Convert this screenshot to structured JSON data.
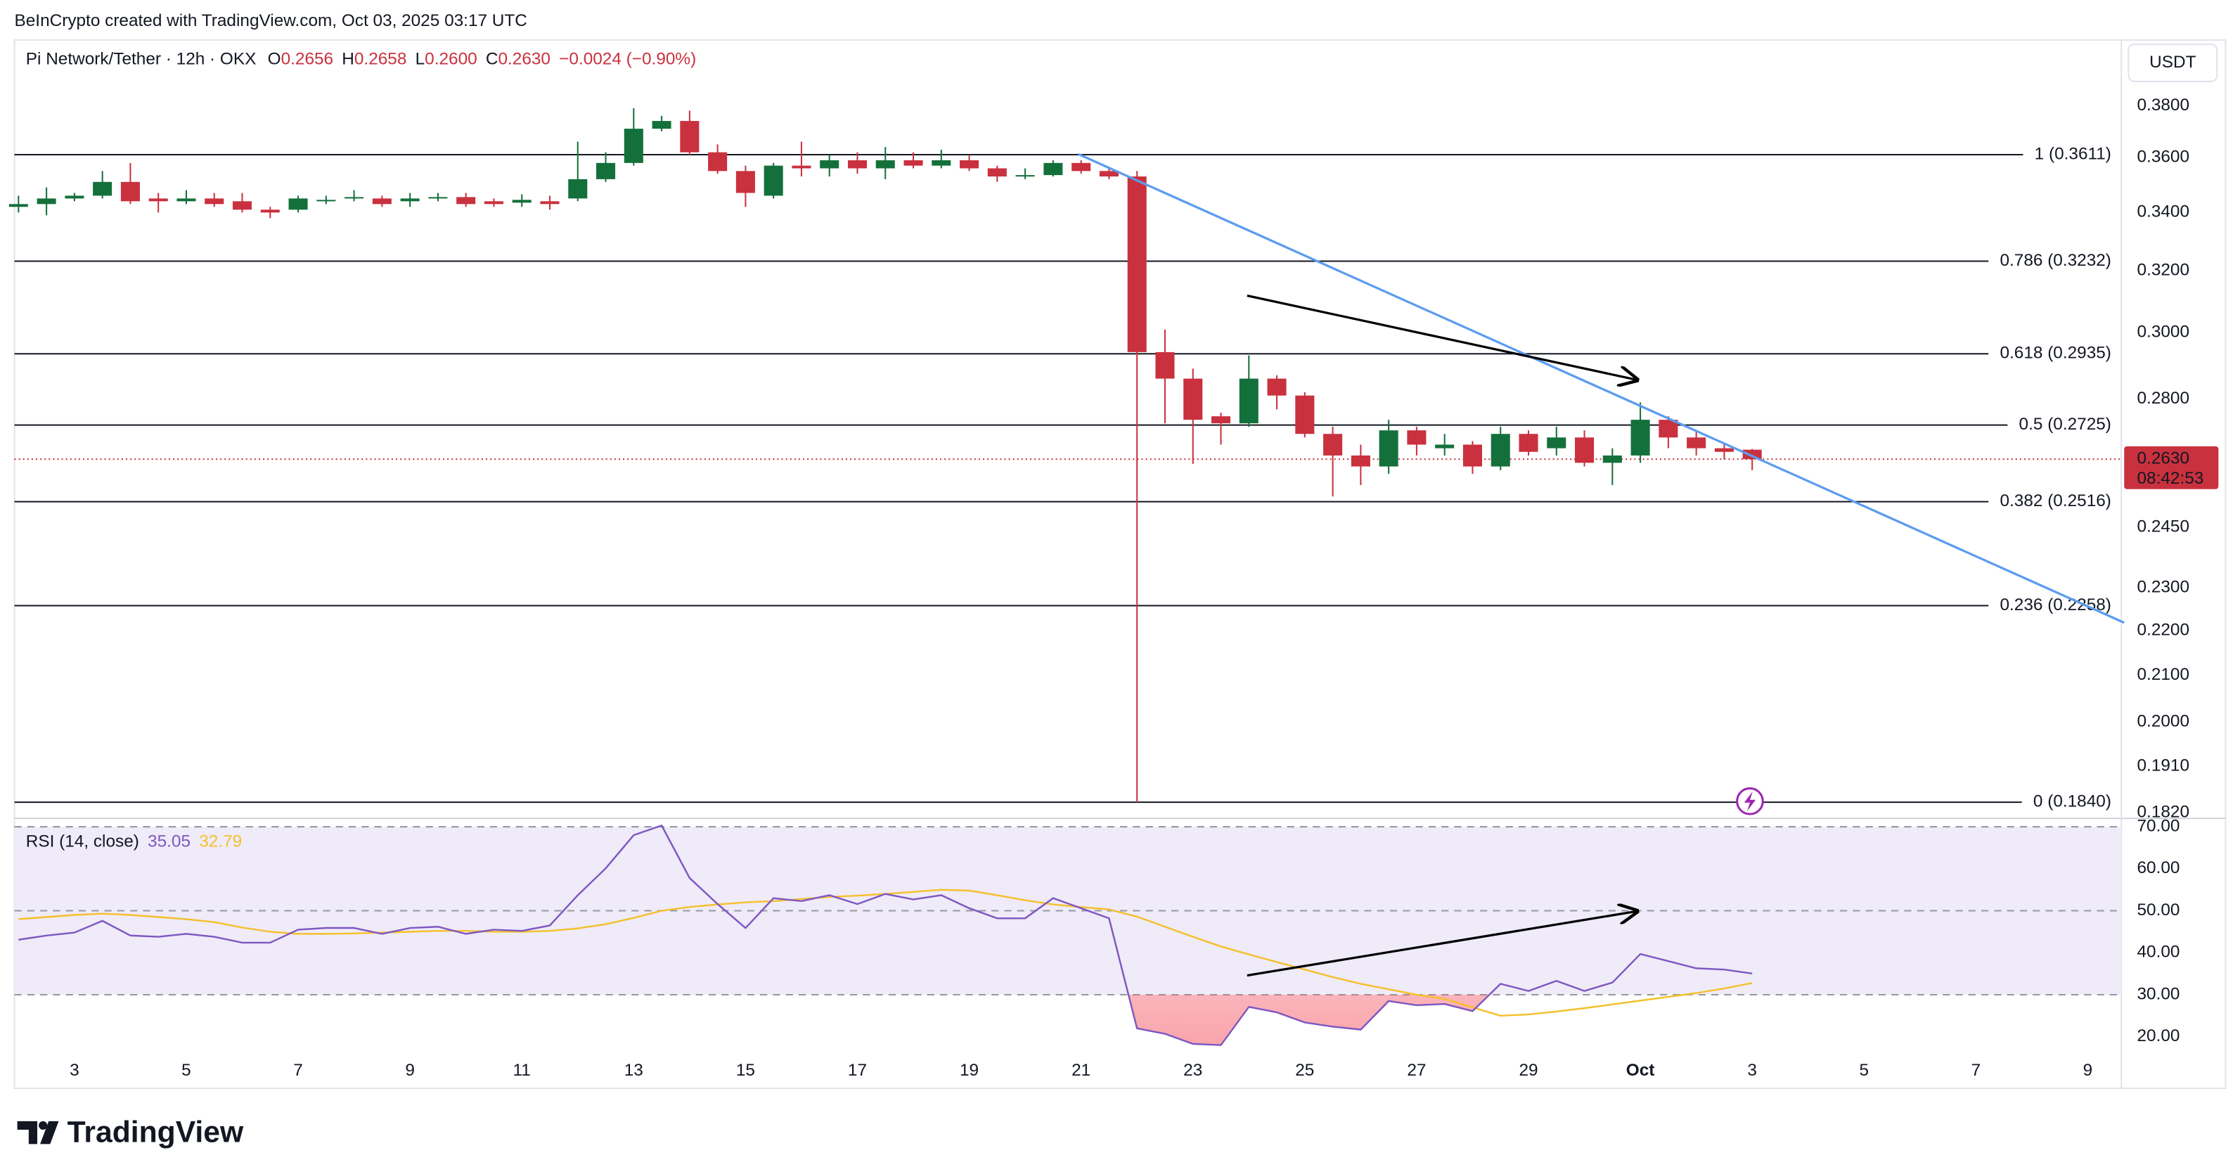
{
  "watermark": "BeInCrypto created with TradingView.com, Oct 03, 2025 03:17 UTC",
  "header": {
    "symbol": "Pi Network/Tether · 12h · OKX",
    "ohlc": [
      {
        "key": "O",
        "text": "0.2656"
      },
      {
        "key": "H",
        "text": "0.2658"
      },
      {
        "key": "L",
        "text": "0.2600"
      },
      {
        "key": "C",
        "text": "0.2630"
      }
    ],
    "change": "−0.0024 (−0.90%)"
  },
  "currency": "USDT",
  "chart_data": [
    {
      "type": "candlestick",
      "log_scale": true,
      "up_color": "#14703b",
      "down_color": "#c9313e",
      "x": [
        2,
        2.5,
        3,
        3.5,
        4,
        4.5,
        5,
        5.5,
        6,
        6.5,
        7,
        7.5,
        8,
        8.5,
        9,
        9.5,
        10,
        10.5,
        11,
        11.5,
        12,
        12.5,
        13,
        13.5,
        14,
        14.5,
        15,
        15.5,
        16,
        16.5,
        17,
        17.5,
        18,
        18.5,
        19,
        19.5,
        20,
        20.5,
        21,
        21.5,
        22,
        22.5,
        23,
        23.5,
        24,
        24.5,
        25,
        25.5,
        26,
        26.5,
        27,
        27.5,
        28,
        28.5,
        29,
        29.5,
        30,
        30.5,
        31,
        31.5,
        32,
        32.5,
        33
      ],
      "open": [
        0.342,
        0.343,
        0.345,
        0.346,
        0.351,
        0.345,
        0.344,
        0.345,
        0.344,
        0.341,
        0.341,
        0.344,
        0.345,
        0.345,
        0.344,
        0.345,
        0.3455,
        0.344,
        0.3435,
        0.344,
        0.345,
        0.352,
        0.358,
        0.371,
        0.374,
        0.362,
        0.355,
        0.346,
        0.357,
        0.356,
        0.359,
        0.356,
        0.359,
        0.357,
        0.359,
        0.356,
        0.353,
        0.3535,
        0.358,
        0.355,
        0.353,
        0.294,
        0.286,
        0.275,
        0.273,
        0.286,
        0.281,
        0.27,
        0.264,
        0.261,
        0.271,
        0.266,
        0.267,
        0.261,
        0.27,
        0.266,
        0.269,
        0.262,
        0.264,
        0.274,
        0.269,
        0.266,
        0.2656
      ],
      "high": [
        0.346,
        0.349,
        0.347,
        0.355,
        0.358,
        0.347,
        0.348,
        0.347,
        0.347,
        0.342,
        0.346,
        0.346,
        0.348,
        0.346,
        0.347,
        0.347,
        0.347,
        0.345,
        0.3465,
        0.346,
        0.366,
        0.362,
        0.379,
        0.376,
        0.378,
        0.365,
        0.357,
        0.358,
        0.366,
        0.361,
        0.362,
        0.364,
        0.362,
        0.363,
        0.361,
        0.357,
        0.356,
        0.359,
        0.359,
        0.356,
        0.355,
        0.301,
        0.289,
        0.276,
        0.293,
        0.287,
        0.282,
        0.272,
        0.267,
        0.274,
        0.272,
        0.27,
        0.268,
        0.272,
        0.271,
        0.272,
        0.271,
        0.266,
        0.279,
        0.275,
        0.271,
        0.267,
        0.2658
      ],
      "low": [
        0.34,
        0.339,
        0.344,
        0.345,
        0.343,
        0.34,
        0.343,
        0.342,
        0.34,
        0.338,
        0.34,
        0.343,
        0.344,
        0.342,
        0.342,
        0.344,
        0.342,
        0.342,
        0.342,
        0.341,
        0.344,
        0.351,
        0.357,
        0.37,
        0.361,
        0.354,
        0.342,
        0.345,
        0.353,
        0.353,
        0.354,
        0.352,
        0.356,
        0.356,
        0.355,
        0.351,
        0.352,
        0.353,
        0.354,
        0.352,
        0.184,
        0.273,
        0.2617,
        0.267,
        0.272,
        0.277,
        0.269,
        0.253,
        0.256,
        0.259,
        0.264,
        0.264,
        0.259,
        0.26,
        0.264,
        0.264,
        0.261,
        0.256,
        0.262,
        0.266,
        0.264,
        0.263,
        0.26
      ],
      "close": [
        0.343,
        0.345,
        0.346,
        0.351,
        0.344,
        0.344,
        0.345,
        0.343,
        0.341,
        0.34,
        0.345,
        0.3445,
        0.3455,
        0.343,
        0.345,
        0.3455,
        0.343,
        0.343,
        0.3445,
        0.343,
        0.352,
        0.358,
        0.371,
        0.374,
        0.362,
        0.355,
        0.347,
        0.357,
        0.356,
        0.359,
        0.356,
        0.359,
        0.357,
        0.359,
        0.356,
        0.353,
        0.3535,
        0.358,
        0.355,
        0.353,
        0.294,
        0.286,
        0.274,
        0.273,
        0.286,
        0.281,
        0.27,
        0.264,
        0.261,
        0.271,
        0.267,
        0.267,
        0.261,
        0.27,
        0.265,
        0.269,
        0.262,
        0.264,
        0.274,
        0.269,
        0.266,
        0.265,
        0.263
      ],
      "xlim": [
        1.927,
        39.6
      ],
      "xticks": [
        3,
        5,
        7,
        9,
        11,
        13,
        15,
        17,
        19,
        21,
        23,
        25,
        27,
        29,
        {
          "value": 31,
          "label": "Oct"
        },
        {
          "value": 33,
          "label": "3"
        },
        {
          "value": 35,
          "label": "5"
        },
        {
          "value": 37,
          "label": "7"
        },
        {
          "value": 39,
          "label": "9"
        }
      ],
      "ylim": [
        0.4069,
        0.1812
      ],
      "yticks": [
        {
          "value": 0.38,
          "label": "0.3800"
        },
        {
          "value": 0.36,
          "label": "0.3600"
        },
        {
          "value": 0.34,
          "label": "0.3400"
        },
        {
          "value": 0.32,
          "label": "0.3200"
        },
        {
          "value": 0.3,
          "label": "0.3000"
        },
        {
          "value": 0.28,
          "label": "0.2800"
        },
        {
          "value": 0.245,
          "label": "0.2450"
        },
        {
          "value": 0.23,
          "label": "0.2300"
        },
        {
          "value": 0.22,
          "label": "0.2200"
        },
        {
          "value": 0.21,
          "label": "0.2100"
        },
        {
          "value": 0.2,
          "label": "0.2000"
        },
        {
          "value": 0.191,
          "label": "0.1910"
        },
        {
          "value": 0.182,
          "label": "0.1820"
        }
      ],
      "fib_levels": [
        {
          "value": 0.3611,
          "label": "1 (0.3611)"
        },
        {
          "value": 0.3232,
          "label": "0.786 (0.3232)"
        },
        {
          "value": 0.2935,
          "label": "0.618 (0.2935)"
        },
        {
          "value": 0.2725,
          "label": "0.5 (0.2725)"
        },
        {
          "value": 0.2516,
          "label": "0.382 (0.2516)"
        },
        {
          "value": 0.2258,
          "label": "0.236 (0.2258)"
        },
        {
          "value": 0.184,
          "label": "0 (0.1840)"
        }
      ],
      "last_price": {
        "value": 0.263,
        "label": "0.2630",
        "countdown": "08:42:53",
        "color": "#c9313e"
      }
    },
    {
      "type": "line",
      "title": "RSI (14, close)",
      "series": [
        {
          "color": "#7e57c2",
          "values": [
            43.1,
            44.1,
            44.8,
            47.6,
            44.1,
            43.8,
            44.5,
            43.8,
            42.4,
            42.4,
            45.5,
            45.9,
            45.9,
            44.5,
            45.9,
            46.2,
            44.5,
            45.5,
            45.2,
            46.5,
            53.7,
            60.1,
            68.0,
            70.3,
            57.8,
            51.6,
            45.9,
            53.0,
            52.3,
            53.7,
            51.6,
            54.0,
            52.7,
            53.7,
            50.6,
            48.2,
            48.2,
            53.0,
            50.6,
            48.2,
            22.0,
            20.7,
            18.3,
            18.0,
            27.1,
            25.8,
            23.4,
            22.4,
            21.7,
            28.5,
            27.5,
            27.8,
            26.1,
            32.6,
            30.9,
            33.3,
            30.9,
            32.9,
            39.7,
            38.0,
            36.3,
            36.0,
            35.05
          ]
        },
        {
          "color": "#f5c02c",
          "values": [
            48.0,
            48.5,
            49.0,
            49.3,
            49.0,
            48.5,
            48.0,
            47.3,
            46.0,
            45.0,
            44.5,
            44.5,
            44.6,
            44.8,
            45.0,
            45.2,
            45.2,
            45.0,
            45.0,
            45.2,
            45.8,
            46.8,
            48.3,
            50.0,
            50.9,
            51.5,
            52.0,
            52.3,
            52.8,
            53.3,
            53.6,
            54.0,
            54.5,
            55.0,
            54.8,
            53.7,
            52.5,
            51.5,
            50.9,
            50.3,
            48.6,
            46.2,
            43.8,
            41.5,
            39.6,
            37.8,
            36.0,
            34.2,
            32.6,
            31.3,
            30.0,
            29.0,
            27.0,
            25.0,
            25.3,
            26.0,
            26.8,
            27.7,
            28.6,
            29.5,
            30.4,
            31.5,
            32.79
          ]
        }
      ],
      "ylim": [
        72,
        15.2
      ],
      "yticks": [
        {
          "value": 70,
          "label": "70.00"
        },
        {
          "value": 60,
          "label": "60.00"
        },
        {
          "value": 50,
          "label": "50.00"
        },
        {
          "value": 40,
          "label": "40.00"
        },
        {
          "value": 30,
          "label": "30.00"
        },
        {
          "value": 20,
          "label": "20.00"
        }
      ],
      "band": [
        70,
        30
      ],
      "dashed_levels": [
        70,
        50,
        30
      ]
    }
  ],
  "footer": {
    "brand": "TradingView"
  }
}
